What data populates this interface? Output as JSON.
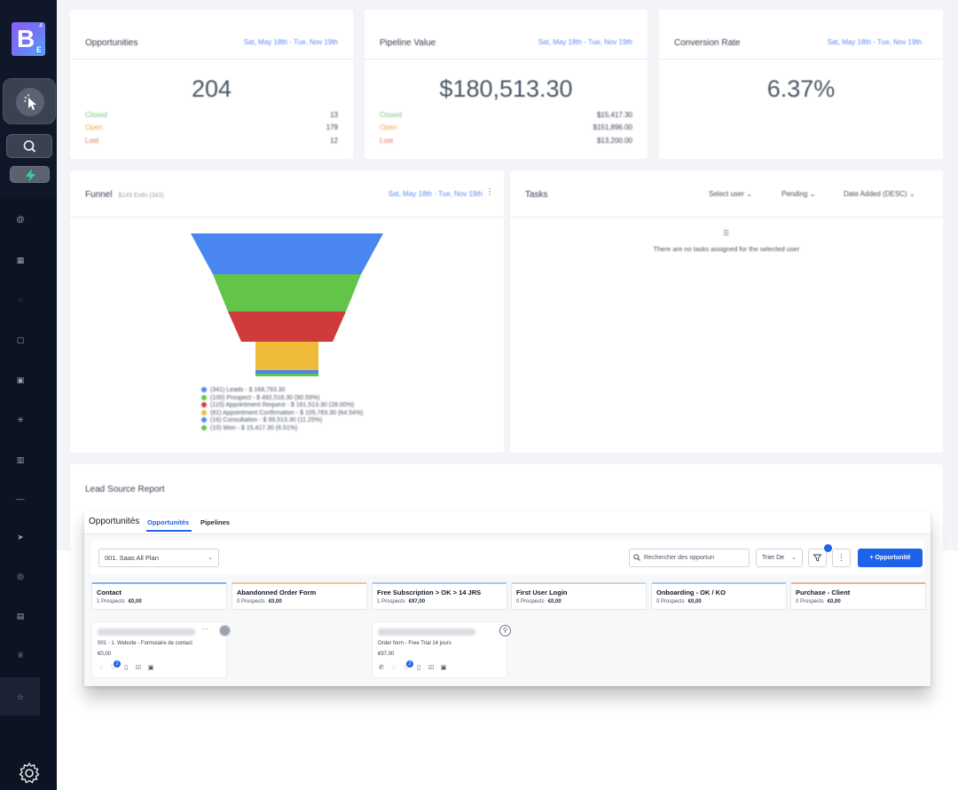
{
  "brand": {
    "logo_letter": "B",
    "logo_sub": "E",
    "logo_sup": "4"
  },
  "sidebar": {
    "top_icons": [
      "cursor-click-icon",
      "search-icon",
      "bolt-icon"
    ],
    "nav_icons": [
      "at-icon",
      "grid-icon",
      "chat-icon",
      "calendar-icon",
      "contacts-icon",
      "asterisk-icon",
      "building-icon",
      "minus-icon",
      "send-icon",
      "refresh-icon",
      "box-icon",
      "trophy-icon",
      "star-icon"
    ],
    "bottom_icon": "gear-icon"
  },
  "dashboard": {
    "date_range": "Sat, May 18th - Tue, Nov 19th",
    "opportunities": {
      "title": "Opportunities",
      "value": "204",
      "rows": [
        {
          "label": "Closed",
          "value": "13"
        },
        {
          "label": "Open",
          "value": "179"
        },
        {
          "label": "Lost",
          "value": "12"
        }
      ]
    },
    "pipeline_value": {
      "title": "Pipeline Value",
      "value": "$180,513.30",
      "rows": [
        {
          "label": "Closed",
          "value": "$15,417.30"
        },
        {
          "label": "Open",
          "value": "$151,896.00"
        },
        {
          "label": "Lost",
          "value": "$13,200.00"
        }
      ]
    },
    "conversion_rate": {
      "title": "Conversion Rate",
      "value": "6.37%"
    },
    "funnel": {
      "title": "Funnel",
      "subtitle": "$149 Ex8s (343)",
      "legend": [
        "(341) Leads - $ 168,793.30",
        "(100) Prospect - $ 492,518.30 (90.59%)",
        "(115) Appointment Request - $ 181,513.30 (28.00%)",
        "(81) Appointment Confirmation - $ 105,783.30 (64.54%)",
        "(16) Consultation - $ 99,513.30 (11.25%)",
        "(10) Won - $ 15,417.30 (6.51%)"
      ]
    },
    "tasks": {
      "title": "Tasks",
      "filters": [
        "Select user",
        "Pending",
        "Date Added (DESC)"
      ],
      "empty_text": "There are no tasks assigned for the selected user"
    },
    "lead_source": {
      "title": "Lead Source Report"
    }
  },
  "colors": {
    "funnel": [
      "#4a86f0",
      "#62c448",
      "#cf3b3b",
      "#efbb38",
      "#4a86f0",
      "#62c448"
    ],
    "stages": [
      "#7fb3ef",
      "#f3c48b",
      "#a9c8f0",
      "#cfd3d9",
      "#a9c8f0",
      "#f0b092"
    ],
    "accent": "#1d63ea"
  },
  "opportunities_panel": {
    "title": "Opportunités",
    "tabs": [
      "Opportunités",
      "Pipelines"
    ],
    "pipeline": "001. Saas All Plan",
    "search_placeholder": "Rechercher des opportun",
    "sort_label": "Trier De",
    "add_label": "+ Opportunité",
    "stages": [
      {
        "name": "Contact",
        "count": "1 Prospects",
        "value": "€0,00"
      },
      {
        "name": "Abandonned Order Form",
        "count": "0 Prospects",
        "value": "€0,00"
      },
      {
        "name": "Free Subscription > OK > 14 JRS",
        "count": "1 Prospects",
        "value": "€97,00"
      },
      {
        "name": "First User Login",
        "count": "0 Prospects",
        "value": "€0,00"
      },
      {
        "name": "Onboarding - OK / KO",
        "count": "0 Prospects",
        "value": "€0,00"
      },
      {
        "name": "Purchase - Client",
        "count": "0 Prospects",
        "value": "€0,00"
      }
    ],
    "cards": [
      {
        "source": "001 - 1. Website - Formulaire de contact",
        "value": "€0,00",
        "badge": "1"
      },
      {
        "source": "Order form - Free Trial 14 jours",
        "value": "€97,00",
        "badge": "2"
      }
    ]
  }
}
